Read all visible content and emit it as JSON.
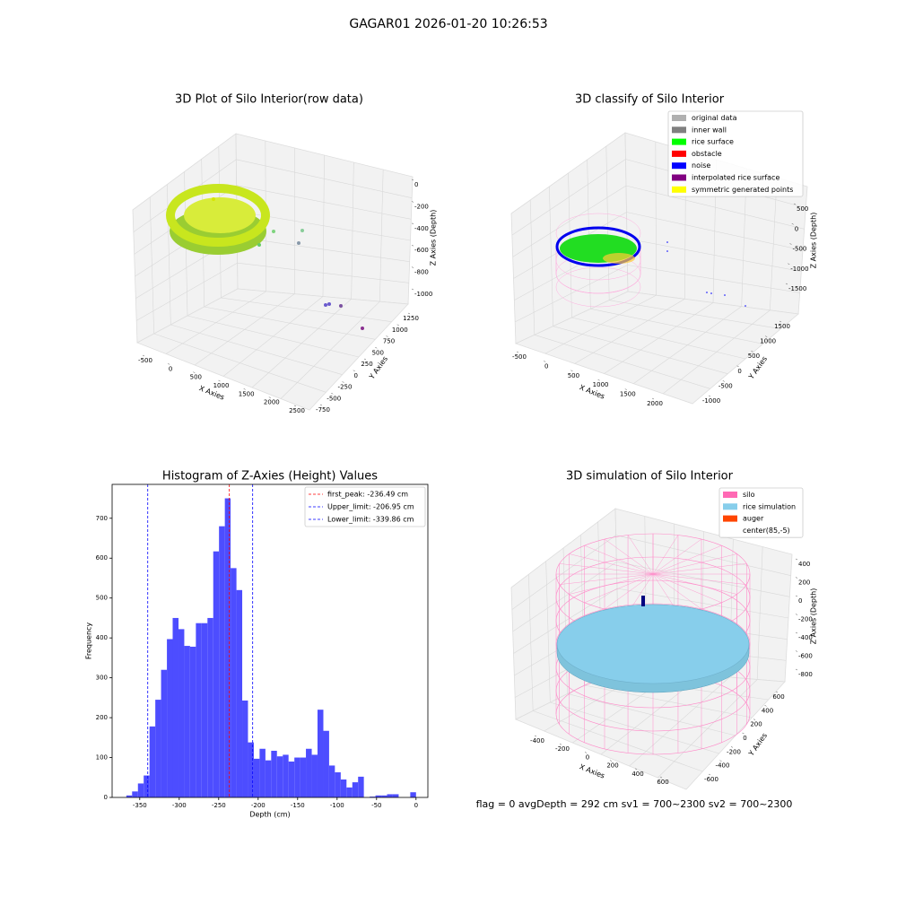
{
  "title": "GAGAR01 2026-01-20 10:26:53",
  "footer": "flag = 0     avgDepth = 292 cm  sv1 = 700~2300  sv2 = 700~2300",
  "chart_data": [
    {
      "type": "scatter3d",
      "title": "3D Plot of Silo Interior(row data)",
      "xlabel": "X Axies",
      "ylabel": "Y Axies",
      "zlabel": "Z Axies (Depth)",
      "xlim": [
        -500,
        2500
      ],
      "xticks": [
        -500,
        0,
        500,
        1000,
        1500,
        2000,
        2500
      ],
      "ylim": [
        -750,
        1250
      ],
      "yticks": [
        -750,
        -500,
        -250,
        0,
        250,
        500,
        750,
        1000,
        1250
      ],
      "zlim": [
        -1000,
        0
      ],
      "zticks": [
        -1000,
        -800,
        -600,
        -400,
        -200,
        0
      ]
    },
    {
      "type": "scatter3d",
      "title": "3D classify of Silo Interior",
      "xlabel": "X Axies",
      "ylabel": "Y Axies",
      "zlabel": "Z Axies (Depth)",
      "xlim": [
        -500,
        2000
      ],
      "xticks": [
        -500,
        0,
        500,
        1000,
        1500,
        2000
      ],
      "ylim": [
        -1000,
        1500
      ],
      "yticks": [
        -1000,
        -500,
        0,
        500,
        1000,
        1500
      ],
      "zlim": [
        -1500,
        500
      ],
      "zticks": [
        -1500,
        -1000,
        -500,
        0,
        500
      ],
      "legend": [
        {
          "name": "original data",
          "color": "#b0b0b0"
        },
        {
          "name": "inner wall",
          "color": "#808080"
        },
        {
          "name": "rice surface",
          "color": "#00ff00"
        },
        {
          "name": "obstacle",
          "color": "#ff0000"
        },
        {
          "name": "noise",
          "color": "#0000ff"
        },
        {
          "name": "interpolated rice surface",
          "color": "#800080"
        },
        {
          "name": "symmetric generated points",
          "color": "#ffff00"
        }
      ]
    },
    {
      "type": "histogram",
      "title": "Histogram of Z-Axies (Height) Values",
      "xlabel": "Depth (cm)",
      "ylabel": "Frequency",
      "color": "#4d4dff",
      "xlim": [
        -385,
        15
      ],
      "xticks": [
        -350,
        -300,
        -250,
        -200,
        -150,
        -100,
        -50,
        0
      ],
      "ylim": [
        0,
        785
      ],
      "yticks": [
        0,
        100,
        200,
        300,
        400,
        500,
        600,
        700
      ],
      "bins": [
        -367,
        -359.7,
        -352.3,
        -345,
        -337.6,
        -330.3,
        -323,
        -315.6,
        -308.3,
        -300.9,
        -293.6,
        -286.3,
        -278.9,
        -271.6,
        -264.2,
        -256.9,
        -249.6,
        -242.2,
        -234.9,
        -227.5,
        -220.2,
        -212.9,
        -205.5,
        -198.2,
        -190.8,
        -183.5,
        -176.2,
        -168.8,
        -161.5,
        -154.1,
        -146.8,
        -139.5,
        -132.1,
        -124.8,
        -117.4,
        -110.1,
        -102.8,
        -95.4,
        -88.1,
        -80.7,
        -73.4,
        -66.1,
        -58.7,
        -51.4,
        -44,
        -36.7,
        -29.4,
        -22,
        -14.7,
        -7.3,
        0
      ],
      "values": [
        5,
        15,
        35,
        55,
        178,
        245,
        320,
        397,
        450,
        422,
        380,
        378,
        437,
        437,
        450,
        617,
        680,
        750,
        575,
        520,
        243,
        138,
        97,
        122,
        93,
        117,
        103,
        107,
        90,
        100,
        100,
        122,
        107,
        220,
        167,
        80,
        63,
        45,
        25,
        38,
        52,
        0,
        2,
        5,
        5,
        8,
        8,
        0,
        0,
        13
      ],
      "vlines": [
        {
          "label": "first_peak: -236.49 cm",
          "value": -236.49,
          "color": "#ff0000"
        },
        {
          "label": "Upper_limit: -206.95 cm",
          "value": -206.95,
          "color": "#0000ff"
        },
        {
          "label": "Lower_limit: -339.86 cm",
          "value": -339.86,
          "color": "#0000ff"
        }
      ]
    },
    {
      "type": "surface3d",
      "title": "3D simulation of Silo Interior",
      "xlabel": "X Axies",
      "ylabel": "Y Axies",
      "zlabel": "Z Axies (Depth)",
      "xlim": [
        -400,
        600
      ],
      "xticks": [
        -400,
        -200,
        0,
        200,
        400,
        600
      ],
      "ylim": [
        -600,
        600
      ],
      "yticks": [
        -600,
        -400,
        -200,
        0,
        200,
        400,
        600
      ],
      "zlim": [
        -800,
        400
      ],
      "zticks": [
        -800,
        -600,
        -400,
        -200,
        0,
        200,
        400
      ],
      "legend": [
        {
          "name": "silo",
          "color": "#ff69b4"
        },
        {
          "name": "rice simulation",
          "color": "#87ceeb"
        },
        {
          "name": "auger",
          "color": "#ff4500"
        },
        {
          "name": "center(85,-5)",
          "color": "#ffffff"
        }
      ]
    }
  ]
}
